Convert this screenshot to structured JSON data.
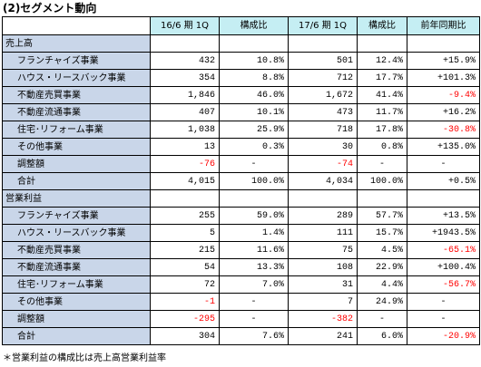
{
  "title": "(2)セグメント動向",
  "columns": [
    "",
    "16/6 期 1Q",
    "構成比",
    "17/6 期 1Q",
    "構成比",
    "前年同期比"
  ],
  "sections": [
    {
      "name": "売上高",
      "rows": [
        {
          "label": "フランチャイズ事業",
          "v1": "432",
          "r1": "10.8%",
          "v2": "501",
          "r2": "12.4%",
          "yoy": "+15.9%"
        },
        {
          "label": "ハウス・リースバック事業",
          "v1": "354",
          "r1": "8.8%",
          "v2": "712",
          "r2": "17.7%",
          "yoy": "+101.3%"
        },
        {
          "label": "不動産売買事業",
          "v1": "1,846",
          "r1": "46.0%",
          "v2": "1,672",
          "r2": "41.4%",
          "yoy": "-9.4%"
        },
        {
          "label": "不動産流通事業",
          "v1": "407",
          "r1": "10.1%",
          "v2": "473",
          "r2": "11.7%",
          "yoy": "+16.2%"
        },
        {
          "label": "住宅･リフォーム事業",
          "v1": "1,038",
          "r1": "25.9%",
          "v2": "718",
          "r2": "17.8%",
          "yoy": "-30.8%"
        },
        {
          "label": "その他事業",
          "v1": "13",
          "r1": "0.3%",
          "v2": "30",
          "r2": "0.8%",
          "yoy": "+135.0%"
        },
        {
          "label": "調整額",
          "v1": "-76",
          "r1": "-",
          "v2": "-74",
          "r2": "-",
          "yoy": "-"
        },
        {
          "label": "合計",
          "v1": "4,015",
          "r1": "100.0%",
          "v2": "4,034",
          "r2": "100.0%",
          "yoy": "+0.5%"
        }
      ]
    },
    {
      "name": "営業利益",
      "rows": [
        {
          "label": "フランチャイズ事業",
          "v1": "255",
          "r1": "59.0%",
          "v2": "289",
          "r2": "57.7%",
          "yoy": "+13.5%"
        },
        {
          "label": "ハウス・リースバック事業",
          "v1": "5",
          "r1": "1.4%",
          "v2": "111",
          "r2": "15.7%",
          "yoy": "+1943.5%"
        },
        {
          "label": "不動産売買事業",
          "v1": "215",
          "r1": "11.6%",
          "v2": "75",
          "r2": "4.5%",
          "yoy": "-65.1%"
        },
        {
          "label": "不動産流通事業",
          "v1": "54",
          "r1": "13.3%",
          "v2": "108",
          "r2": "22.9%",
          "yoy": "+100.4%"
        },
        {
          "label": "住宅･リフォーム事業",
          "v1": "72",
          "r1": "7.0%",
          "v2": "31",
          "r2": "4.4%",
          "yoy": "-56.7%"
        },
        {
          "label": "その他事業",
          "v1": "-1",
          "r1": "-",
          "v2": "7",
          "r2": "24.9%",
          "yoy": "-"
        },
        {
          "label": "調整額",
          "v1": "-295",
          "r1": "-",
          "v2": "-382",
          "r2": "-",
          "yoy": "-"
        },
        {
          "label": "合計",
          "v1": "304",
          "r1": "7.6%",
          "v2": "241",
          "r2": "6.0%",
          "yoy": "-20.9%"
        }
      ]
    }
  ],
  "note": "＊営業利益の構成比は売上高営業利益率",
  "colors": {
    "header_bg": "#c5eef3",
    "label_bg": "#c9d6e9",
    "negative": "#ff0000"
  }
}
